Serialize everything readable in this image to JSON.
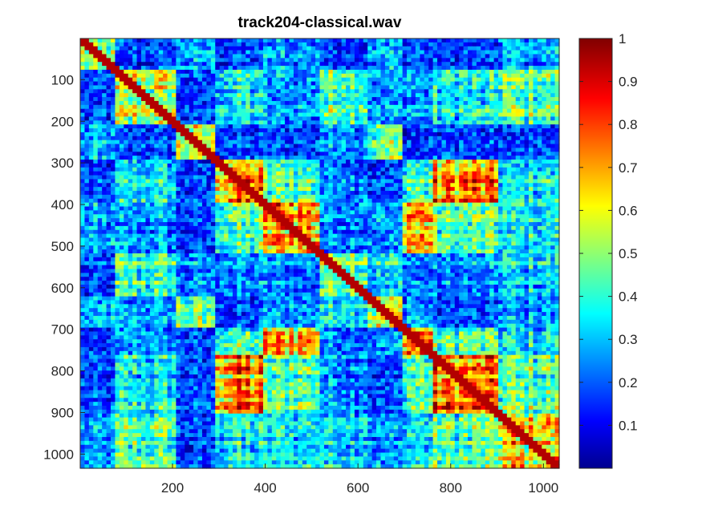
{
  "chart_data": {
    "type": "heatmap",
    "title": "track204-classical.wav",
    "xlabel": "",
    "ylabel": "",
    "xlim": [
      1,
      1034
    ],
    "ylim": [
      1,
      1034
    ],
    "y_direction": "reverse",
    "x_ticks": [
      200,
      400,
      600,
      800,
      1000
    ],
    "y_ticks": [
      100,
      200,
      300,
      400,
      500,
      600,
      700,
      800,
      900,
      1000
    ],
    "colormap": "jet",
    "color_range": [
      0,
      1
    ],
    "colorbar_ticks": [
      0.1,
      0.2,
      0.3,
      0.4,
      0.5,
      0.6,
      0.7,
      0.8,
      0.9,
      1
    ],
    "colorbar_tick_labels": [
      "0.1",
      "0.2",
      "0.3",
      "0.4",
      "0.5",
      "0.6",
      "0.7",
      "0.8",
      "0.9",
      "1"
    ],
    "description_of_values": "self-similarity matrix; diagonal = 1; strong repeated blocks near 300-400, 400-500, 700-750, 840-880, 900-1000",
    "block_segments": [
      [
        1,
        80
      ],
      [
        80,
        210
      ],
      [
        210,
        290
      ],
      [
        290,
        400
      ],
      [
        400,
        520
      ],
      [
        520,
        620
      ],
      [
        620,
        700
      ],
      [
        700,
        760
      ],
      [
        760,
        900
      ],
      [
        900,
        1034
      ]
    ],
    "grid": false,
    "legend": "none"
  },
  "colors": {
    "colormap_low": "#00008f",
    "colormap_mid": "#80ff80",
    "colormap_high": "#800000",
    "axis": "#262626"
  }
}
